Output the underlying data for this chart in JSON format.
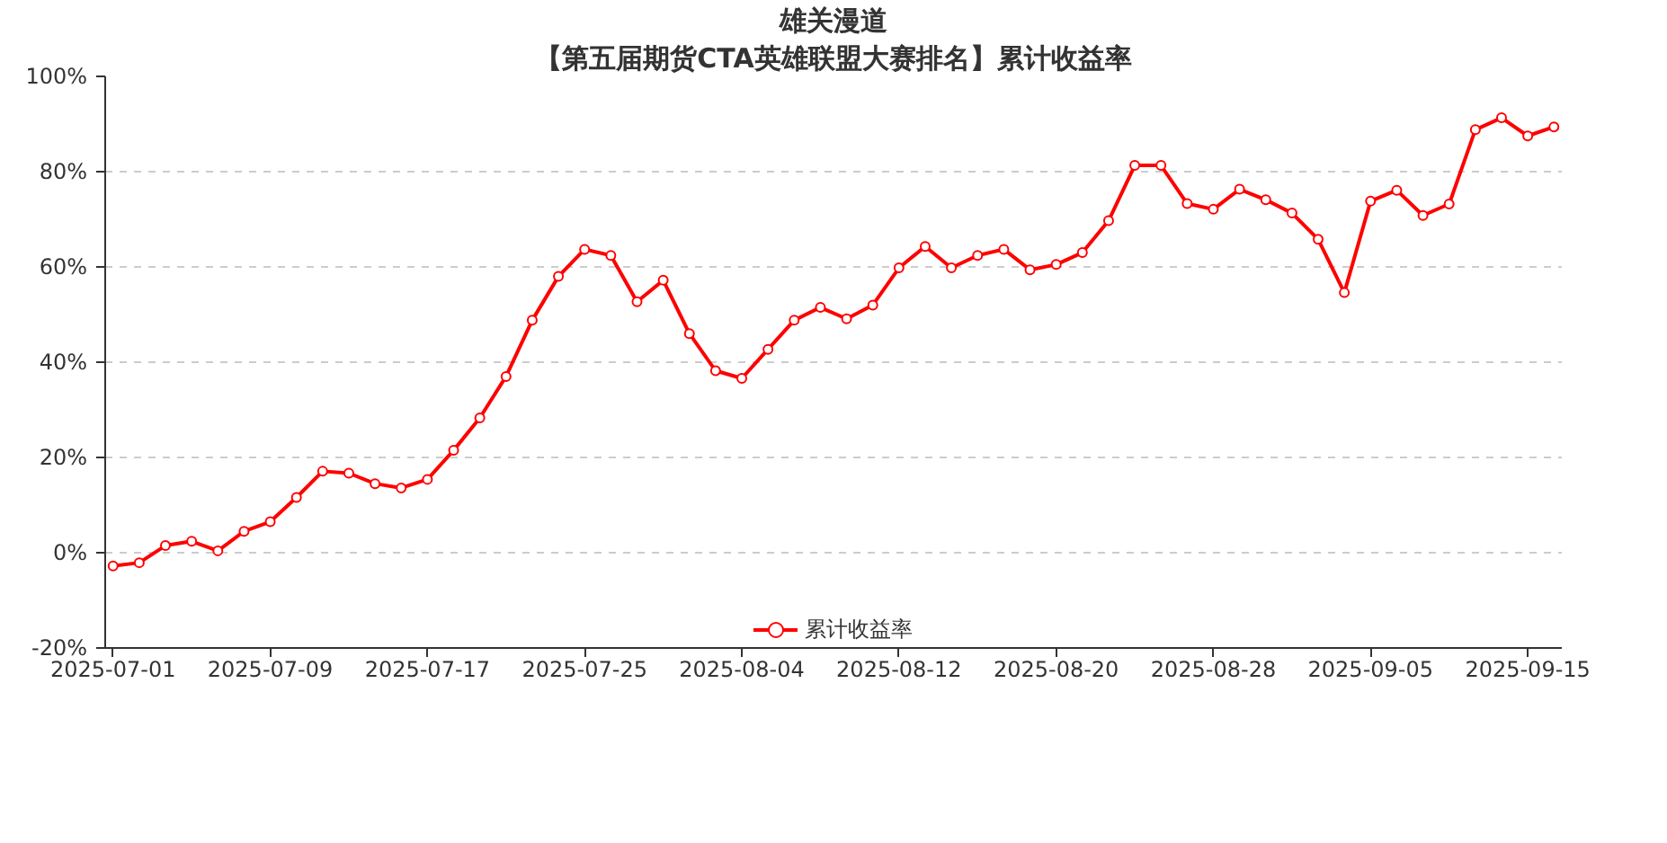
{
  "chart_data": {
    "type": "line",
    "title": "雄关漫道",
    "subtitle": "【第五届期货CTA英雄联盟大赛排名】累计收益率",
    "categories": [
      "2025-07-01",
      null,
      null,
      null,
      null,
      null,
      "2025-07-09",
      null,
      null,
      null,
      null,
      null,
      "2025-07-17",
      null,
      null,
      null,
      null,
      null,
      "2025-07-25",
      null,
      null,
      null,
      null,
      null,
      "2025-08-04",
      null,
      null,
      null,
      null,
      null,
      "2025-08-12",
      null,
      null,
      null,
      null,
      null,
      "2025-08-20",
      null,
      null,
      null,
      null,
      null,
      "2025-08-28",
      null,
      null,
      null,
      null,
      null,
      "2025-09-05",
      null,
      null,
      null,
      null,
      null,
      "2025-09-15",
      null
    ],
    "series": [
      {
        "name": "累计收益率",
        "color": "#ff0000",
        "values": [
          -2.8,
          -2.1,
          1.5,
          2.4,
          0.4,
          4.5,
          6.5,
          11.6,
          17.1,
          16.7,
          14.5,
          13.6,
          15.4,
          21.5,
          28.3,
          37.0,
          48.8,
          58.0,
          63.7,
          62.4,
          52.7,
          57.2,
          46.0,
          38.2,
          36.6,
          42.7,
          48.8,
          51.5,
          49.1,
          52.0,
          59.8,
          64.3,
          59.8,
          62.4,
          63.7,
          59.4,
          60.5,
          63.0,
          69.7,
          81.3,
          81.3,
          73.3,
          72.1,
          76.3,
          74.1,
          71.3,
          65.8,
          54.6,
          73.8,
          76.1,
          70.8,
          73.2,
          88.8,
          91.3,
          87.5,
          89.4
        ]
      }
    ],
    "ylim": [
      -20,
      100
    ],
    "yticks": [
      {
        "value": -20,
        "label": "-20%"
      },
      {
        "value": 0,
        "label": "0%"
      },
      {
        "value": 20,
        "label": "20%"
      },
      {
        "value": 40,
        "label": "40%"
      },
      {
        "value": 60,
        "label": "60%"
      },
      {
        "value": 80,
        "label": "80%"
      },
      {
        "value": 100,
        "label": "100%"
      }
    ],
    "grid": "y",
    "legend": "bottom",
    "marker": "circle",
    "line_style": "solid"
  }
}
